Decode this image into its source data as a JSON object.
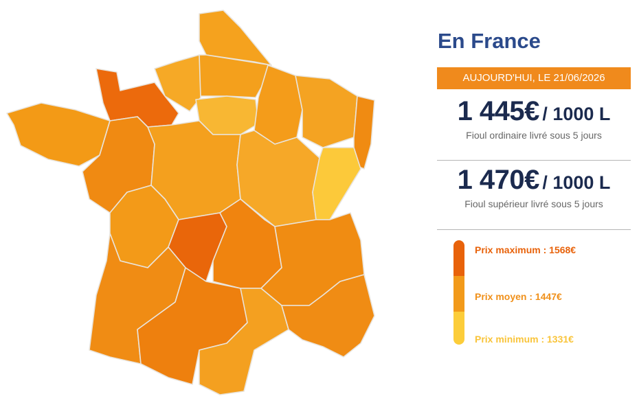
{
  "title": "En France",
  "date_badge": "AUJOURD'HUI, LE 21/06/2026",
  "prices": [
    {
      "price": "1 445€",
      "unit": "/ 1000 L",
      "description": "Fioul ordinaire livré sous 5 jours"
    },
    {
      "price": "1 470€",
      "unit": "/ 1000 L",
      "description": "Fioul supérieur livré sous 5 jours"
    }
  ],
  "legend": [
    "Prix maximum : 1568€",
    "Prix moyen : 1447€",
    "Prix minimum : 1331€"
  ]
}
